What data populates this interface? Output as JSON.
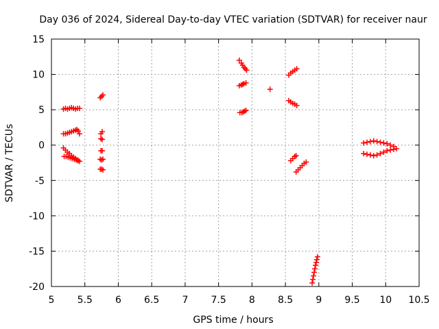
{
  "chart_data": {
    "type": "scatter",
    "title": "Day 036 of 2024, Sidereal Day-to-day VTEC variation (SDTVAR) for receiver naur",
    "xlabel": "GPS time / hours",
    "ylabel": "SDTVAR / TECUs",
    "xlim": [
      5,
      10.5
    ],
    "ylim": [
      -20,
      15
    ],
    "xticks": [
      "5",
      "5.5",
      "6",
      "6.5",
      "7",
      "7.5",
      "8",
      "8.5",
      "9",
      "9.5",
      "10",
      "10.5"
    ],
    "yticks": [
      "15",
      "10",
      "5",
      "0",
      "-5",
      "-10",
      "-15",
      "-20"
    ],
    "grid": true,
    "marker": "plus",
    "color": "#ff0000",
    "series": [
      {
        "points": [
          [
            5.18,
            5.1
          ],
          [
            5.21,
            5.2
          ],
          [
            5.24,
            5.1
          ],
          [
            5.27,
            5.2
          ],
          [
            5.3,
            5.3
          ],
          [
            5.33,
            5.2
          ],
          [
            5.36,
            5.1
          ],
          [
            5.39,
            5.2
          ],
          [
            5.42,
            5.2
          ],
          [
            5.18,
            1.6
          ],
          [
            5.21,
            1.6
          ],
          [
            5.24,
            1.7
          ],
          [
            5.27,
            1.8
          ],
          [
            5.3,
            1.9
          ],
          [
            5.33,
            2.0
          ],
          [
            5.36,
            2.1
          ],
          [
            5.38,
            2.2
          ],
          [
            5.4,
            2.0
          ],
          [
            5.42,
            1.6
          ],
          [
            5.18,
            -0.4
          ],
          [
            5.21,
            -0.7
          ],
          [
            5.24,
            -1.0
          ],
          [
            5.27,
            -1.2
          ],
          [
            5.3,
            -1.5
          ],
          [
            5.33,
            -1.7
          ],
          [
            5.36,
            -1.9
          ],
          [
            5.39,
            -2.1
          ],
          [
            5.42,
            -2.3
          ],
          [
            5.19,
            -1.6
          ],
          [
            5.22,
            -1.6
          ],
          [
            5.25,
            -1.7
          ],
          [
            5.28,
            -1.8
          ],
          [
            5.31,
            -1.9
          ],
          [
            5.34,
            -2.0
          ],
          [
            5.37,
            -2.1
          ],
          [
            5.4,
            -2.2
          ],
          [
            5.73,
            6.7
          ],
          [
            5.75,
            6.9
          ],
          [
            5.77,
            7.1
          ],
          [
            5.74,
            1.6
          ],
          [
            5.76,
            1.9
          ],
          [
            5.74,
            0.9
          ],
          [
            5.76,
            0.8
          ],
          [
            5.74,
            -0.8
          ],
          [
            5.76,
            -0.8
          ],
          [
            5.73,
            -2.0
          ],
          [
            5.75,
            -2.1
          ],
          [
            5.77,
            -2.0
          ],
          [
            5.73,
            -3.4
          ],
          [
            5.75,
            -3.4
          ],
          [
            5.77,
            -3.5
          ],
          [
            7.81,
            12.0
          ],
          [
            7.84,
            11.6
          ],
          [
            7.86,
            11.3
          ],
          [
            7.88,
            11.0
          ],
          [
            7.9,
            10.8
          ],
          [
            7.92,
            10.6
          ],
          [
            7.81,
            8.4
          ],
          [
            7.84,
            8.5
          ],
          [
            7.86,
            8.6
          ],
          [
            7.88,
            8.7
          ],
          [
            7.91,
            8.8
          ],
          [
            7.82,
            4.6
          ],
          [
            7.85,
            4.6
          ],
          [
            7.87,
            4.7
          ],
          [
            7.89,
            4.8
          ],
          [
            7.91,
            4.9
          ],
          [
            8.27,
            7.9
          ],
          [
            8.55,
            9.9
          ],
          [
            8.58,
            10.2
          ],
          [
            8.61,
            10.4
          ],
          [
            8.64,
            10.6
          ],
          [
            8.67,
            10.8
          ],
          [
            8.55,
            6.3
          ],
          [
            8.58,
            6.1
          ],
          [
            8.61,
            5.9
          ],
          [
            8.64,
            5.8
          ],
          [
            8.67,
            5.6
          ],
          [
            8.58,
            -2.2
          ],
          [
            8.61,
            -1.9
          ],
          [
            8.64,
            -1.6
          ],
          [
            8.66,
            -1.5
          ],
          [
            8.66,
            -3.8
          ],
          [
            8.69,
            -3.5
          ],
          [
            8.72,
            -3.2
          ],
          [
            8.75,
            -2.9
          ],
          [
            8.78,
            -2.6
          ],
          [
            8.81,
            -2.4
          ],
          [
            8.9,
            -19.5
          ],
          [
            8.91,
            -19.0
          ],
          [
            8.92,
            -18.5
          ],
          [
            8.93,
            -18.0
          ],
          [
            8.94,
            -17.5
          ],
          [
            8.95,
            -17.0
          ],
          [
            8.96,
            -16.6
          ],
          [
            8.97,
            -16.2
          ],
          [
            8.98,
            -15.8
          ],
          [
            9.67,
            0.3
          ],
          [
            9.72,
            0.4
          ],
          [
            9.77,
            0.5
          ],
          [
            9.82,
            0.6
          ],
          [
            9.87,
            0.5
          ],
          [
            9.92,
            0.4
          ],
          [
            9.97,
            0.3
          ],
          [
            10.02,
            0.2
          ],
          [
            10.07,
            0.0
          ],
          [
            10.12,
            -0.2
          ],
          [
            10.16,
            -0.5
          ],
          [
            9.67,
            -1.2
          ],
          [
            9.72,
            -1.3
          ],
          [
            9.77,
            -1.4
          ],
          [
            9.82,
            -1.5
          ],
          [
            9.87,
            -1.4
          ],
          [
            9.92,
            -1.2
          ],
          [
            9.97,
            -1.0
          ],
          [
            10.02,
            -0.8
          ],
          [
            10.07,
            -0.7
          ],
          [
            10.12,
            -0.6
          ]
        ]
      }
    ]
  }
}
